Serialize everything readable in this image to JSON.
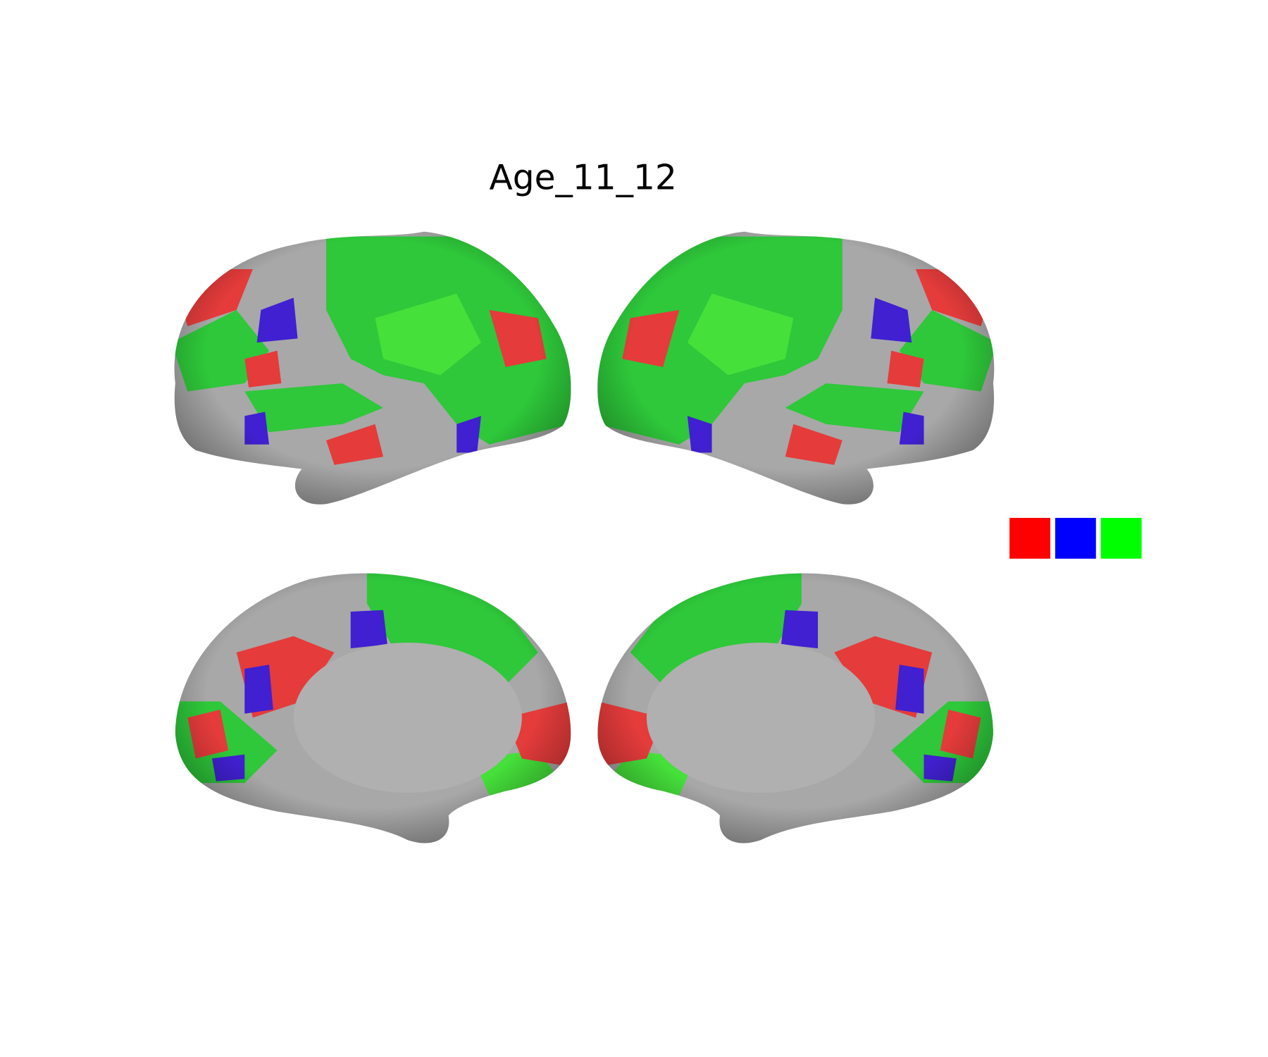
{
  "title": "Age_11_12",
  "legend": {
    "colors": [
      "#ff0000",
      "#0000ff",
      "#00ff00"
    ]
  }
}
